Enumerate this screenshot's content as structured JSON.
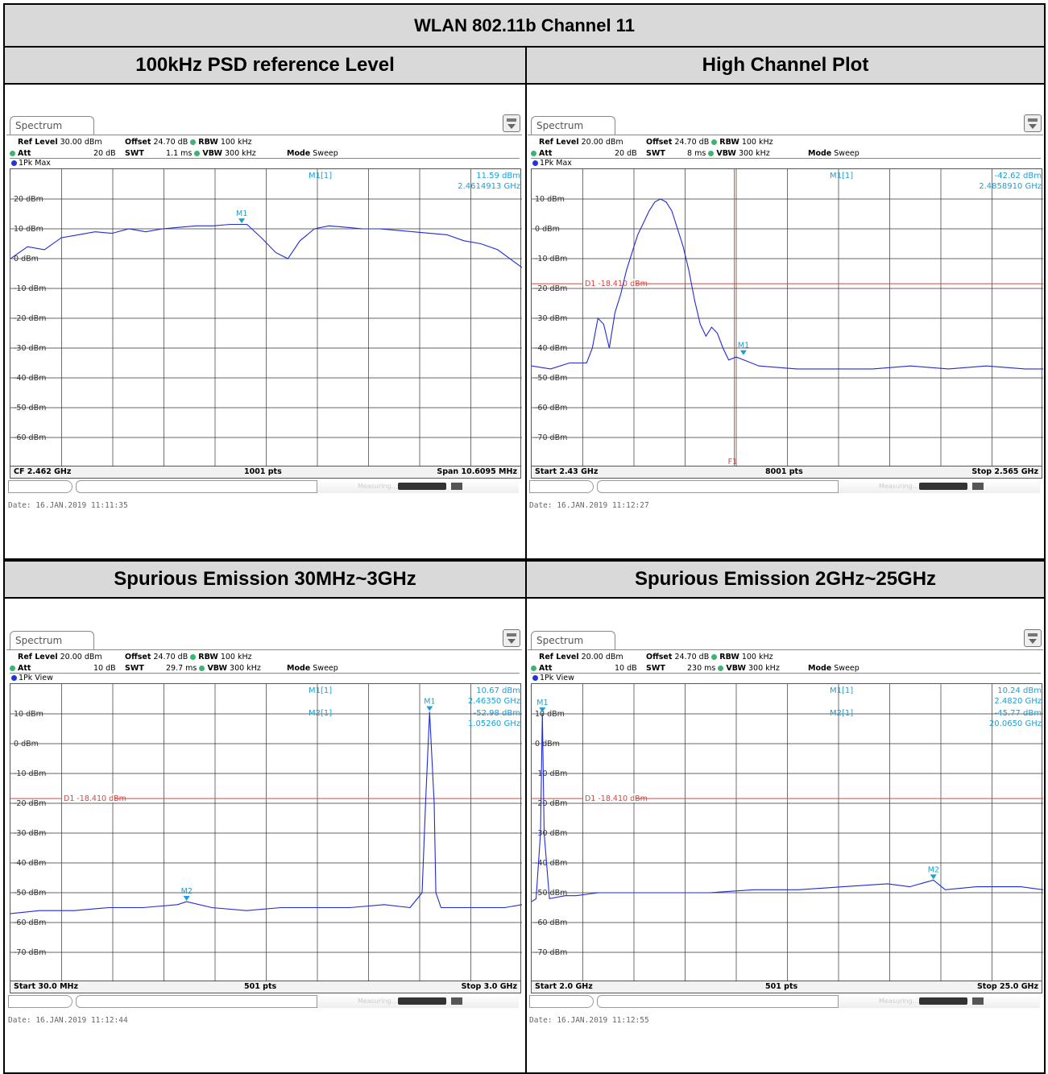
{
  "table_title": "WLAN 802.11b Channel 11",
  "colors": {
    "trace": "#1f2ad8",
    "marker": "#1aa0d6",
    "display_line": "#d9443f",
    "grid": "#333333",
    "header_bg": "#d9d9d9"
  },
  "common": {
    "tab_label": "Spectrum",
    "ref_level_label": "Ref Level",
    "offset_label": "Offset",
    "rbw_label": "RBW",
    "att_label": "Att",
    "swt_label": "SWT",
    "vbw_label": "VBW",
    "mode_label": "Mode",
    "mode_value": "Sweep",
    "offset_value": "24.70 dB",
    "rbw_value": "100 kHz",
    "vbw_value": "300 kHz",
    "status_text": "Measuring..."
  },
  "panels": [
    {
      "heading": "100kHz PSD reference Level",
      "ref_level": "30.00 dBm",
      "att": "20 dB",
      "swt": "1.1 ms",
      "trace_label": "1Pk Max",
      "footer_left": "CF 2.462 GHz",
      "footer_mid": "1001 pts",
      "footer_right": "Span 10.6095 MHz",
      "date": "Date: 16.JAN.2019  11:11:35",
      "readout": [
        {
          "label": "M1[1]",
          "value": "11.59 dBm",
          "freq": "2.4614913 GHz"
        }
      ]
    },
    {
      "heading": "High Channel Plot",
      "ref_level": "20.00 dBm",
      "att": "20 dB",
      "swt": "8 ms",
      "trace_label": "1Pk Max",
      "footer_left": "Start 2.43 GHz",
      "footer_mid": "8001 pts",
      "footer_right": "Stop 2.565 GHz",
      "date": "Date: 16.JAN.2019  11:12:27",
      "readout": [
        {
          "label": "M1[1]",
          "value": "-42.62 dBm",
          "freq": "2.4858910 GHz"
        }
      ]
    },
    {
      "heading": "Spurious Emission 30MHz~3GHz",
      "ref_level": "20.00 dBm",
      "att": "10 dB",
      "swt": "29.7 ms",
      "trace_label": "1Pk View",
      "footer_left": "Start 30.0 MHz",
      "footer_mid": "501 pts",
      "footer_right": "Stop 3.0 GHz",
      "date": "Date: 16.JAN.2019  11:12:44",
      "readout": [
        {
          "label": "M1[1]",
          "value": "10.67 dBm",
          "freq": "2.46350 GHz"
        },
        {
          "label": "M2[1]",
          "value": "-52.98 dBm",
          "freq": "1.05260 GHz"
        }
      ]
    },
    {
      "heading": "Spurious Emission 2GHz~25GHz",
      "ref_level": "20.00 dBm",
      "att": "10 dB",
      "swt": "230 ms",
      "trace_label": "1Pk View",
      "footer_left": "Start 2.0 GHz",
      "footer_mid": "501 pts",
      "footer_right": "Stop 25.0 GHz",
      "date": "Date: 16.JAN.2019  11:12:55",
      "readout": [
        {
          "label": "M1[1]",
          "value": "10.24 dBm",
          "freq": "2.4820 GHz"
        },
        {
          "label": "M2[1]",
          "value": "-45.77 dBm",
          "freq": "20.0650 GHz"
        }
      ]
    }
  ],
  "chart_data": [
    {
      "type": "line",
      "ylim": [
        -70,
        30
      ],
      "xlim": [
        2.456695,
        2.467305
      ],
      "x_unit": "GHz",
      "y_ticks": [
        20,
        10,
        0,
        -10,
        -20,
        -30,
        -40,
        -50,
        -60
      ],
      "y_tick_labels": [
        "20 dBm",
        "10 dBm",
        "0 dBm",
        "-10 dBm",
        "-20 dBm",
        "-30 dBm",
        "-40 dBm",
        "-50 dBm",
        "-60 dBm"
      ],
      "series": [
        {
          "x": [
            2.456695,
            2.45705,
            2.4574,
            2.45775,
            2.4581,
            2.45845,
            2.4588,
            2.45915,
            2.4595,
            2.45985,
            2.4602,
            2.46055,
            2.4609,
            2.46125,
            2.4616,
            2.4619,
            2.4622,
            2.46245,
            2.4627,
            2.463,
            2.4633,
            2.46365,
            2.464,
            2.46435,
            2.4647,
            2.46505,
            2.4654,
            2.46575,
            2.4661,
            2.46645,
            2.4668,
            2.467305
          ],
          "y": [
            0,
            4,
            3,
            7,
            8,
            9,
            8.5,
            10,
            9,
            10,
            10.5,
            11,
            11,
            11.5,
            11.5,
            7,
            2,
            0,
            6,
            10,
            11,
            10.5,
            10,
            10,
            9.5,
            9,
            8.5,
            8,
            6,
            5,
            3,
            -3
          ]
        }
      ],
      "markers": [
        {
          "name": "M1",
          "x": 2.4614913,
          "y": 11.59
        }
      ],
      "display_lines": [],
      "f_lines": []
    },
    {
      "type": "line",
      "ylim": [
        -80,
        20
      ],
      "xlim": [
        2.43,
        2.565
      ],
      "x_unit": "GHz",
      "y_ticks": [
        10,
        0,
        -10,
        -20,
        -30,
        -40,
        -50,
        -60,
        -70
      ],
      "y_tick_labels": [
        "10 dBm",
        "0 dBm",
        "-10 dBm",
        "-20 dBm",
        "-30 dBm",
        "-40 dBm",
        "-50 dBm",
        "-60 dBm",
        "-70 dBm"
      ],
      "series": [
        {
          "x": [
            2.43,
            2.435,
            2.44,
            2.4445,
            2.446,
            2.4475,
            2.449,
            2.4505,
            2.452,
            2.4535,
            2.455,
            2.4565,
            2.458,
            2.4595,
            2.461,
            2.4625,
            2.464,
            2.4655,
            2.467,
            2.4685,
            2.47,
            2.4715,
            2.473,
            2.4745,
            2.476,
            2.4775,
            2.479,
            2.4805,
            2.482,
            2.484,
            2.486,
            2.49,
            2.5,
            2.51,
            2.52,
            2.53,
            2.54,
            2.55,
            2.56,
            2.565
          ],
          "y": [
            -46,
            -47,
            -45,
            -45,
            -40,
            -30,
            -32,
            -40,
            -28,
            -22,
            -14,
            -8,
            -2,
            2,
            6,
            9,
            10,
            9,
            6,
            0,
            -6,
            -14,
            -24,
            -32,
            -36,
            -33,
            -35,
            -40,
            -44,
            -43,
            -44,
            -46,
            -47,
            -47,
            -47,
            -46,
            -47,
            -46,
            -47,
            -47
          ]
        }
      ],
      "markers": [
        {
          "name": "M1",
          "x": 2.485891,
          "y": -42.62
        }
      ],
      "display_lines": [
        {
          "name": "D1",
          "label": "D1  -18.410 dBm",
          "y": -18.41
        }
      ],
      "f_lines": [
        {
          "name": "F1",
          "x": 2.4835
        }
      ]
    },
    {
      "type": "line",
      "ylim": [
        -80,
        20
      ],
      "xlim": [
        0.03,
        3.0
      ],
      "x_unit": "GHz",
      "y_ticks": [
        10,
        0,
        -10,
        -20,
        -30,
        -40,
        -50,
        -60,
        -70
      ],
      "y_tick_labels": [
        "10 dBm",
        "0 dBm",
        "-10 dBm",
        "-20 dBm",
        "-30 dBm",
        "-40 dBm",
        "-50 dBm",
        "-60 dBm",
        "-70 dBm"
      ],
      "series": [
        {
          "x": [
            0.03,
            0.2,
            0.4,
            0.6,
            0.8,
            1.0,
            1.0526,
            1.2,
            1.4,
            1.6,
            1.8,
            2.0,
            2.2,
            2.35,
            2.42,
            2.44,
            2.4635,
            2.49,
            2.5,
            2.53,
            2.7,
            2.9,
            3.0
          ],
          "y": [
            -57,
            -56,
            -56,
            -55,
            -55,
            -54,
            -53,
            -55,
            -56,
            -55,
            -55,
            -55,
            -54,
            -55,
            -50,
            -20,
            10.67,
            -20,
            -50,
            -55,
            -55,
            -55,
            -54
          ]
        }
      ],
      "markers": [
        {
          "name": "M1",
          "x": 2.4635,
          "y": 10.67
        },
        {
          "name": "M2",
          "x": 1.0526,
          "y": -52.98
        }
      ],
      "display_lines": [
        {
          "name": "D1",
          "label": "D1  -18.410 dBm",
          "y": -18.41
        }
      ],
      "f_lines": []
    },
    {
      "type": "line",
      "ylim": [
        -80,
        20
      ],
      "xlim": [
        2.0,
        25.0
      ],
      "x_unit": "GHz",
      "y_ticks": [
        10,
        0,
        -10,
        -20,
        -30,
        -40,
        -50,
        -60,
        -70
      ],
      "y_tick_labels": [
        "10 dBm",
        "0 dBm",
        "-10 dBm",
        "-20 dBm",
        "-30 dBm",
        "-40 dBm",
        "-50 dBm",
        "-60 dBm",
        "-70 dBm"
      ],
      "series": [
        {
          "x": [
            2.0,
            2.2,
            2.4,
            2.48,
            2.56,
            2.8,
            3.5,
            4.0,
            5.0,
            6.0,
            8.0,
            10.0,
            12.0,
            14.0,
            16.0,
            18.0,
            19.0,
            20.065,
            20.6,
            22.0,
            24.0,
            25.0
          ],
          "y": [
            -53,
            -52,
            -30,
            10.24,
            -30,
            -52,
            -51,
            -51,
            -50,
            -50,
            -50,
            -50,
            -49,
            -49,
            -48,
            -47,
            -48,
            -45.77,
            -49,
            -48,
            -48,
            -49
          ]
        }
      ],
      "markers": [
        {
          "name": "M1",
          "x": 2.482,
          "y": 10.24
        },
        {
          "name": "M2",
          "x": 20.065,
          "y": -45.77
        }
      ],
      "display_lines": [
        {
          "name": "D1",
          "label": "D1  -18.410 dBm",
          "y": -18.41
        }
      ],
      "f_lines": []
    }
  ]
}
